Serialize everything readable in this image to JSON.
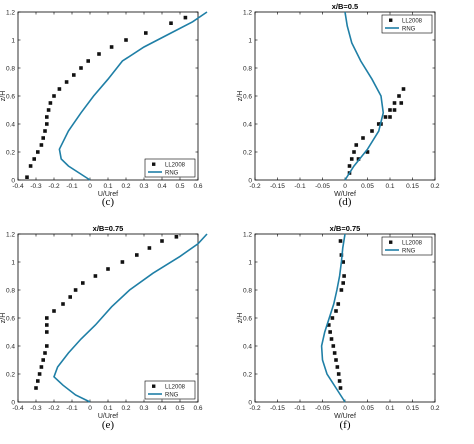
{
  "colors": {
    "rng": "#1f7fa6",
    "marker": "#111111"
  },
  "chart_data": [
    {
      "type": "line",
      "title": "",
      "panel_label": "(c)",
      "xlabel": "U/Uref",
      "ylabel": "z/H",
      "xlim": [
        -0.4,
        0.6
      ],
      "ylim": [
        0,
        1.2
      ],
      "xticks": [
        "-0.4",
        "-0.3",
        "-0.2",
        "-0.1",
        "0",
        "0.1",
        "0.2",
        "0.3",
        "0.4",
        "0.5",
        "0.6"
      ],
      "yticks": [
        "0",
        "0.2",
        "0.4",
        "0.6",
        "0.8",
        "1",
        "1.2"
      ],
      "legend": {
        "position": "bottom-right",
        "entries": [
          "LL2008",
          "RNG"
        ]
      },
      "series": [
        {
          "name": "LL2008",
          "kind": "scatter",
          "x": [
            -0.35,
            -0.33,
            -0.31,
            -0.29,
            -0.27,
            -0.26,
            -0.25,
            -0.24,
            -0.24,
            -0.23,
            -0.22,
            -0.2,
            -0.17,
            -0.13,
            -0.09,
            -0.05,
            -0.01,
            0.05,
            0.12,
            0.2,
            0.31,
            0.45,
            0.53
          ],
          "y": [
            0.02,
            0.1,
            0.15,
            0.2,
            0.25,
            0.3,
            0.35,
            0.4,
            0.45,
            0.5,
            0.55,
            0.6,
            0.65,
            0.7,
            0.75,
            0.8,
            0.85,
            0.9,
            0.95,
            1.0,
            1.05,
            1.12,
            1.16
          ]
        },
        {
          "name": "RNG",
          "kind": "line",
          "x": [
            0,
            -0.06,
            -0.12,
            -0.16,
            -0.17,
            -0.12,
            -0.05,
            0.02,
            0.1,
            0.18,
            0.3,
            0.45,
            0.57,
            0.65
          ],
          "y": [
            0.0,
            0.05,
            0.1,
            0.15,
            0.22,
            0.35,
            0.48,
            0.6,
            0.72,
            0.85,
            0.95,
            1.05,
            1.13,
            1.2
          ]
        }
      ]
    },
    {
      "type": "line",
      "title": "x/B=0.5",
      "panel_label": "(d)",
      "xlabel": "W/Uref",
      "ylabel": "z/H",
      "xlim": [
        -0.2,
        0.2
      ],
      "ylim": [
        0,
        1.2
      ],
      "xticks": [
        "-0.2",
        "-0.15",
        "-0.1",
        "-0.05",
        "0",
        "0.05",
        "0.1",
        "0.15",
        "0.2"
      ],
      "yticks": [
        "0",
        "0.2",
        "0.4",
        "0.6",
        "0.8",
        "1",
        "1.2"
      ],
      "legend": {
        "position": "top-right",
        "entries": [
          "LL2008",
          "RNG"
        ]
      },
      "series": [
        {
          "name": "LL2008",
          "kind": "scatter",
          "x": [
            0.01,
            0.015,
            0.02,
            0.025,
            0.04,
            0.06,
            0.075,
            0.09,
            0.1,
            0.11,
            0.12,
            0.13,
            0.125,
            0.11,
            0.1,
            0.08,
            0.05,
            0.03,
            0.01
          ],
          "y": [
            0.1,
            0.15,
            0.2,
            0.25,
            0.3,
            0.35,
            0.4,
            0.45,
            0.5,
            0.55,
            0.6,
            0.65,
            0.55,
            0.5,
            0.45,
            0.4,
            0.2,
            0.15,
            0.05
          ]
        },
        {
          "name": "RNG",
          "kind": "line",
          "x": [
            0.0,
            0.02,
            0.05,
            0.075,
            0.085,
            0.08,
            0.06,
            0.035,
            0.015,
            0.005,
            0.0
          ],
          "y": [
            0.0,
            0.1,
            0.22,
            0.35,
            0.48,
            0.6,
            0.72,
            0.85,
            0.98,
            1.1,
            1.2
          ]
        }
      ]
    },
    {
      "type": "line",
      "title": "x/B=0.75",
      "panel_label": "(e)",
      "xlabel": "U/Uref",
      "ylabel": "z/H",
      "xlim": [
        -0.4,
        0.6
      ],
      "ylim": [
        0,
        1.2
      ],
      "xticks": [
        "-0.4",
        "-0.3",
        "-0.2",
        "-0.1",
        "0",
        "0.1",
        "0.2",
        "0.3",
        "0.4",
        "0.5",
        "0.6"
      ],
      "yticks": [
        "0",
        "0.2",
        "0.4",
        "0.6",
        "0.8",
        "1",
        "1.2"
      ],
      "legend": {
        "position": "bottom-right",
        "entries": [
          "LL2008",
          "RNG"
        ]
      },
      "series": [
        {
          "name": "LL2008",
          "kind": "scatter",
          "x": [
            -0.3,
            -0.29,
            -0.28,
            -0.27,
            -0.26,
            -0.25,
            -0.24,
            -0.24,
            -0.24,
            -0.24,
            -0.2,
            -0.15,
            -0.11,
            -0.08,
            -0.04,
            0.03,
            0.1,
            0.18,
            0.26,
            0.33,
            0.4,
            0.48
          ],
          "y": [
            0.1,
            0.15,
            0.2,
            0.25,
            0.3,
            0.35,
            0.4,
            0.5,
            0.55,
            0.6,
            0.65,
            0.7,
            0.75,
            0.8,
            0.85,
            0.9,
            0.95,
            1.0,
            1.05,
            1.1,
            1.15,
            1.18
          ]
        },
        {
          "name": "RNG",
          "kind": "line",
          "x": [
            0.0,
            -0.08,
            -0.15,
            -0.2,
            -0.18,
            -0.12,
            -0.05,
            0.03,
            0.12,
            0.22,
            0.35,
            0.5,
            0.6,
            0.65
          ],
          "y": [
            0.0,
            0.05,
            0.12,
            0.18,
            0.25,
            0.35,
            0.45,
            0.55,
            0.68,
            0.8,
            0.92,
            1.04,
            1.13,
            1.2
          ]
        }
      ]
    },
    {
      "type": "line",
      "title": "x/B=0.75",
      "panel_label": "(f)",
      "xlabel": "W/Uref",
      "ylabel": "z/H",
      "xlim": [
        -0.2,
        0.2
      ],
      "ylim": [
        0,
        1.2
      ],
      "xticks": [
        "-0.2",
        "-0.15",
        "-0.1",
        "-0.05",
        "0",
        "0.05",
        "0.1",
        "0.15",
        "0.2"
      ],
      "yticks": [
        "0",
        "0.2",
        "0.4",
        "0.6",
        "0.8",
        "1",
        "1.2"
      ],
      "legend": {
        "position": "top-right",
        "entries": [
          "LL2008",
          "RNG"
        ]
      },
      "series": [
        {
          "name": "LL2008",
          "kind": "scatter",
          "x": [
            -0.01,
            -0.012,
            -0.014,
            -0.017,
            -0.02,
            -0.023,
            -0.026,
            -0.03,
            -0.033,
            -0.036,
            -0.028,
            -0.02,
            -0.015,
            -0.008,
            -0.004,
            -0.002,
            -0.004,
            -0.008,
            -0.01
          ],
          "y": [
            0.1,
            0.15,
            0.2,
            0.25,
            0.3,
            0.35,
            0.4,
            0.45,
            0.5,
            0.55,
            0.6,
            0.65,
            0.7,
            0.8,
            0.85,
            0.9,
            1.0,
            1.05,
            1.15
          ]
        },
        {
          "name": "RNG",
          "kind": "line",
          "x": [
            0.0,
            -0.02,
            -0.04,
            -0.05,
            -0.052,
            -0.045,
            -0.035,
            -0.025,
            -0.018,
            -0.012,
            -0.008,
            -0.005,
            0.0
          ],
          "y": [
            0.0,
            0.1,
            0.2,
            0.3,
            0.4,
            0.5,
            0.6,
            0.7,
            0.8,
            0.9,
            1.0,
            1.1,
            1.2
          ]
        }
      ]
    }
  ]
}
